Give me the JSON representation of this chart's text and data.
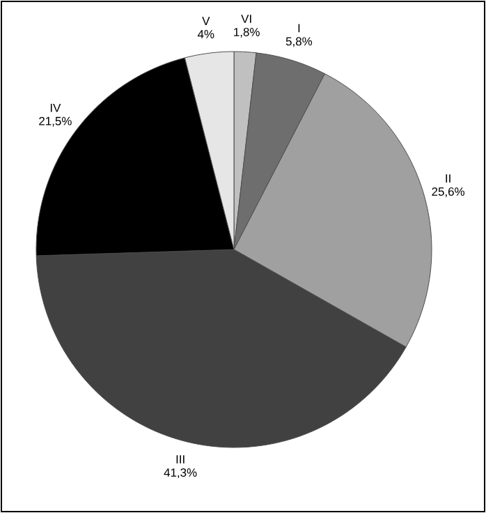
{
  "chart_data": {
    "type": "pie",
    "categories": [
      "VI",
      "I",
      "II",
      "III",
      "IV",
      "V"
    ],
    "values": [
      1.8,
      5.8,
      25.6,
      41.3,
      21.5,
      4
    ],
    "colors": [
      "#c0c0c0",
      "#6e6e6e",
      "#a0a0a0",
      "#414141",
      "#000000",
      "#e6e6e6"
    ],
    "value_labels": [
      "1,8%",
      "5,8%",
      "25,6%",
      "41,3%",
      "21,5%",
      "4%"
    ]
  }
}
